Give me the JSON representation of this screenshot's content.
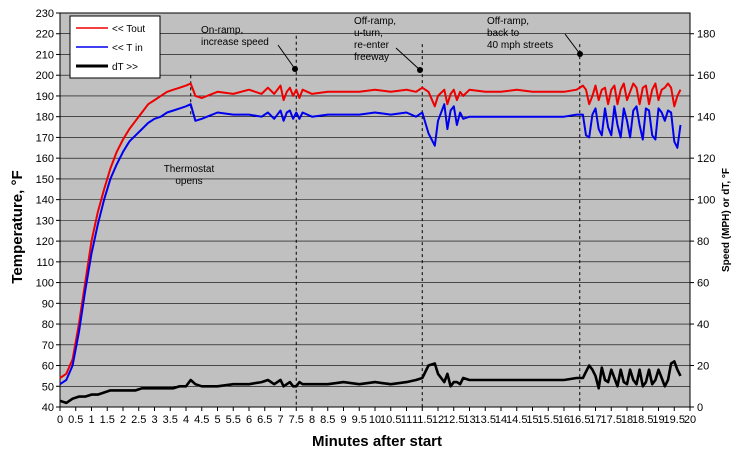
{
  "chart_data": {
    "type": "line",
    "xlabel": "Minutes after start",
    "ylabel": "Temperature, °F",
    "y2label": "Speed (MPH) or dT, °F",
    "xlim": [
      0,
      20
    ],
    "ylim": [
      40,
      230
    ],
    "y2lim": [
      0,
      190
    ],
    "grid": true,
    "legend_position": "top-left",
    "x_ticks": [
      "0",
      "0.5",
      "1",
      "1.5",
      "2",
      "2.5",
      "3",
      "3.5",
      "4",
      "4.5",
      "5",
      "5.5",
      "6",
      "6.5",
      "7",
      "7.5",
      "8",
      "8.5",
      "9",
      "9.5",
      "10",
      "10.5",
      "11",
      "11.5",
      "12",
      "12.5",
      "13",
      "13.5",
      "14",
      "14.5",
      "15",
      "15.5",
      "16",
      "16.5",
      "17",
      "17.5",
      "18",
      "18.5",
      "19",
      "19.5",
      "20"
    ],
    "y_ticks": [
      "40",
      "50",
      "60",
      "70",
      "80",
      "90",
      "100",
      "110",
      "120",
      "130",
      "140",
      "150",
      "160",
      "170",
      "180",
      "190",
      "200",
      "210",
      "220",
      "230"
    ],
    "y2_ticks": [
      "0",
      "20",
      "40",
      "60",
      "80",
      "100",
      "120",
      "140",
      "160",
      "180"
    ],
    "series": [
      {
        "name": "<< Tout",
        "color": "#ee0000",
        "axis": "left",
        "x": [
          0,
          0.2,
          0.4,
          0.6,
          0.8,
          1,
          1.2,
          1.4,
          1.6,
          1.8,
          2,
          2.2,
          2.4,
          2.6,
          2.8,
          3,
          3.2,
          3.4,
          3.6,
          3.8,
          4,
          4.15,
          4.3,
          4.5,
          5,
          5.5,
          6,
          6.4,
          6.6,
          6.8,
          7,
          7.1,
          7.2,
          7.3,
          7.4,
          7.5,
          7.6,
          7.7,
          8,
          8.5,
          9,
          9.5,
          10,
          10.5,
          11,
          11.3,
          11.5,
          11.7,
          11.9,
          12,
          12.2,
          12.3,
          12.4,
          12.5,
          12.6,
          12.7,
          12.8,
          13,
          13.5,
          14,
          14.5,
          15,
          15.5,
          16,
          16.4,
          16.6,
          16.7,
          16.8,
          16.9,
          17,
          17.1,
          17.2,
          17.3,
          17.4,
          17.5,
          17.6,
          17.7,
          17.8,
          17.9,
          18,
          18.1,
          18.2,
          18.3,
          18.4,
          18.5,
          18.6,
          18.7,
          18.8,
          18.9,
          19,
          19.1,
          19.2,
          19.3,
          19.4,
          19.5,
          19.6,
          19.7
        ],
        "values": [
          54,
          56,
          63,
          80,
          100,
          120,
          134,
          145,
          155,
          163,
          169,
          174,
          178,
          182,
          186,
          188,
          190,
          192,
          193,
          194,
          195,
          196,
          190,
          189,
          192,
          191,
          193,
          191,
          194,
          191,
          195,
          188,
          192,
          194,
          190,
          193,
          189,
          193,
          191,
          192,
          192,
          192,
          193,
          192,
          193,
          192,
          194,
          192,
          185,
          190,
          193,
          186,
          191,
          193,
          188,
          192,
          190,
          193,
          192,
          192,
          193,
          192,
          192,
          192,
          193,
          195,
          193,
          186,
          190,
          195,
          188,
          193,
          194,
          186,
          193,
          195,
          186,
          193,
          196,
          188,
          192,
          196,
          194,
          186,
          194,
          195,
          186,
          193,
          196,
          188,
          193,
          194,
          196,
          194,
          185,
          190,
          193
        ]
      },
      {
        "name": "<< T in",
        "color": "#0000ee",
        "axis": "left",
        "x": [
          0,
          0.2,
          0.4,
          0.6,
          0.8,
          1,
          1.2,
          1.4,
          1.6,
          1.8,
          2,
          2.2,
          2.4,
          2.6,
          2.8,
          3,
          3.2,
          3.4,
          3.6,
          3.8,
          4,
          4.15,
          4.3,
          4.5,
          5,
          5.5,
          6,
          6.4,
          6.6,
          6.8,
          7,
          7.1,
          7.2,
          7.3,
          7.4,
          7.5,
          7.6,
          7.7,
          8,
          8.5,
          9,
          9.5,
          10,
          10.5,
          11,
          11.3,
          11.5,
          11.7,
          11.9,
          12,
          12.2,
          12.3,
          12.4,
          12.5,
          12.6,
          12.7,
          12.8,
          13,
          13.5,
          14,
          14.5,
          15,
          15.5,
          16,
          16.4,
          16.6,
          16.7,
          16.8,
          16.9,
          17,
          17.1,
          17.2,
          17.3,
          17.4,
          17.5,
          17.6,
          17.7,
          17.8,
          17.9,
          18,
          18.1,
          18.2,
          18.3,
          18.4,
          18.5,
          18.6,
          18.7,
          18.8,
          18.9,
          19,
          19.1,
          19.2,
          19.3,
          19.4,
          19.5,
          19.6,
          19.7
        ],
        "values": [
          51,
          53,
          60,
          76,
          96,
          114,
          128,
          140,
          150,
          157,
          163,
          168,
          171,
          174,
          177,
          179,
          180,
          182,
          183,
          184,
          185,
          186,
          178,
          179,
          182,
          181,
          181,
          180,
          182,
          179,
          183,
          178,
          182,
          183,
          179,
          182,
          179,
          182,
          180,
          181,
          181,
          181,
          182,
          181,
          182,
          180,
          182,
          172,
          166,
          178,
          186,
          174,
          183,
          185,
          176,
          182,
          179,
          180,
          180,
          180,
          180,
          180,
          180,
          180,
          181,
          181,
          171,
          170,
          181,
          184,
          174,
          171,
          184,
          175,
          171,
          185,
          176,
          170,
          184,
          178,
          170,
          183,
          185,
          176,
          169,
          184,
          183,
          171,
          169,
          184,
          182,
          178,
          183,
          182,
          168,
          165,
          176
        ]
      },
      {
        "name": "dT >>",
        "color": "#000000",
        "axis": "right",
        "x": [
          0,
          0.2,
          0.4,
          0.6,
          0.8,
          1,
          1.2,
          1.4,
          1.6,
          1.8,
          2,
          2.2,
          2.4,
          2.6,
          2.8,
          3,
          3.2,
          3.4,
          3.6,
          3.8,
          4,
          4.15,
          4.3,
          4.5,
          5,
          5.5,
          6,
          6.4,
          6.6,
          6.8,
          7,
          7.1,
          7.2,
          7.3,
          7.4,
          7.5,
          7.6,
          7.7,
          8,
          8.5,
          9,
          9.5,
          10,
          10.5,
          11,
          11.3,
          11.5,
          11.7,
          11.9,
          12,
          12.2,
          12.3,
          12.4,
          12.5,
          12.6,
          12.7,
          12.8,
          13,
          13.5,
          14,
          14.5,
          15,
          15.5,
          16,
          16.4,
          16.6,
          16.7,
          16.8,
          16.9,
          17,
          17.1,
          17.2,
          17.3,
          17.4,
          17.5,
          17.6,
          17.7,
          17.8,
          17.9,
          18,
          18.1,
          18.2,
          18.3,
          18.4,
          18.5,
          18.6,
          18.7,
          18.8,
          18.9,
          19,
          19.1,
          19.2,
          19.3,
          19.4,
          19.5,
          19.6,
          19.7
        ],
        "values": [
          3,
          2,
          4,
          5,
          5,
          6,
          6,
          7,
          8,
          8,
          8,
          8,
          8,
          9,
          9,
          9,
          9,
          9,
          9,
          10,
          10,
          13,
          11,
          10,
          10,
          11,
          11,
          12,
          13,
          11,
          13,
          10,
          11,
          12,
          10,
          10,
          12,
          11,
          11,
          11,
          12,
          11,
          12,
          11,
          12,
          13,
          14,
          20,
          21,
          16,
          12,
          16,
          10,
          12,
          12,
          11,
          14,
          13,
          13,
          13,
          13,
          13,
          13,
          13,
          14,
          14,
          17,
          20,
          18,
          15,
          9,
          19,
          13,
          12,
          18,
          14,
          10,
          18,
          12,
          11,
          18,
          13,
          11,
          18,
          10,
          12,
          18,
          11,
          13,
          18,
          14,
          10,
          13,
          21,
          22,
          18,
          15
        ]
      }
    ],
    "annotations": [
      {
        "lines": [
          "Thermostat",
          "opens"
        ],
        "x": 4.15,
        "y": 195
      },
      {
        "lines": [
          "On-ramp,",
          "increase speed"
        ],
        "x": 7.5,
        "y": 199
      },
      {
        "lines": [
          "Off-ramp,",
          "u-turn,",
          "re-enter",
          "freeway"
        ],
        "x": 11.5,
        "y": 195
      },
      {
        "lines": [
          "Off-ramp,",
          "back to",
          "40 mph streets"
        ],
        "x": 16.5,
        "y": 195
      }
    ]
  }
}
